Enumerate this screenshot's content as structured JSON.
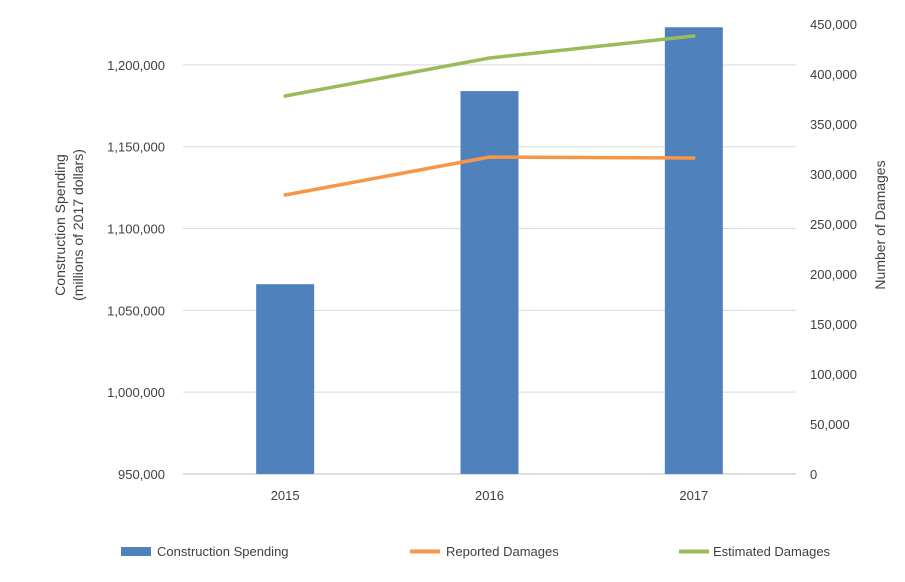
{
  "chart_data": {
    "type": "bar+line",
    "categories": [
      "2015",
      "2016",
      "2017"
    ],
    "ylabel_left": [
      "Construction Spending",
      "(millions of 2017 dollars)"
    ],
    "ylabel_right": "Number of Damages",
    "ylim_left": [
      950000,
      1225000
    ],
    "ylim_right": [
      0,
      450000
    ],
    "yticks_left": [
      "950,000",
      "1,000,000",
      "1,050,000",
      "1,100,000",
      "1,150,000",
      "1,200,000"
    ],
    "yticks_right": [
      "0",
      "50,000",
      "100,000",
      "150,000",
      "200,000",
      "250,000",
      "300,000",
      "350,000",
      "400,000",
      "450,000"
    ],
    "series": [
      {
        "name": "Construction Spending",
        "kind": "bar",
        "axis": "left",
        "color": "#4f81bd",
        "values": [
          1066000,
          1184000,
          1223000
        ]
      },
      {
        "name": "Reported Damages",
        "kind": "line",
        "axis": "right",
        "color": "#f79646",
        "values": [
          279000,
          317000,
          316000
        ]
      },
      {
        "name": "Estimated Damages",
        "kind": "line",
        "axis": "right",
        "color": "#9bbb59",
        "values": [
          378000,
          416000,
          438000
        ]
      }
    ],
    "grid": true,
    "legend": "bottom"
  }
}
